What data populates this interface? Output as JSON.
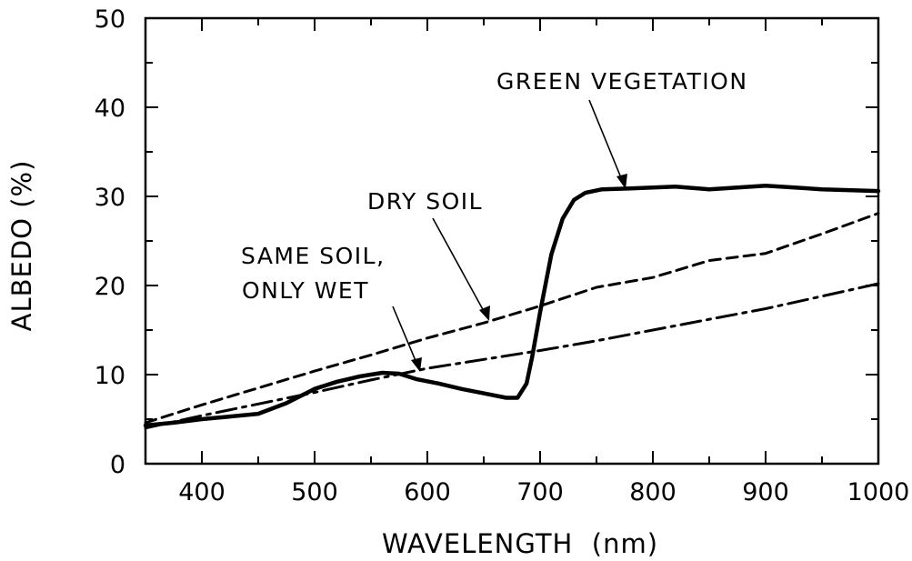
{
  "chart_data": {
    "type": "line",
    "xlabel": "WAVELENGTH  (nm)",
    "ylabel": "ALBEDO  (%)",
    "xlim": [
      350,
      1000
    ],
    "ylim": [
      0,
      50
    ],
    "xticks": [
      400,
      500,
      600,
      700,
      800,
      900,
      1000
    ],
    "yticks": [
      0,
      10,
      20,
      30,
      40,
      50
    ],
    "grid": false,
    "series": [
      {
        "name": "GREEN VEGETATION",
        "style": "solid-thick",
        "x": [
          350,
          375,
          400,
          425,
          450,
          475,
          500,
          520,
          540,
          560,
          575,
          590,
          610,
          630,
          650,
          670,
          680,
          688,
          693,
          700,
          710,
          720,
          730,
          740,
          755,
          780,
          820,
          850,
          900,
          950,
          1000
        ],
        "y": [
          4.3,
          4.6,
          5.0,
          5.3,
          5.6,
          6.8,
          8.4,
          9.2,
          9.8,
          10.2,
          10.1,
          9.5,
          9.0,
          8.4,
          7.9,
          7.4,
          7.4,
          9.0,
          12.0,
          17.0,
          23.5,
          27.5,
          29.6,
          30.4,
          30.8,
          30.9,
          31.1,
          30.8,
          31.2,
          30.8,
          30.6
        ]
      },
      {
        "name": "DRY SOIL",
        "style": "dashed",
        "x": [
          350,
          400,
          450,
          500,
          550,
          600,
          650,
          700,
          750,
          800,
          850,
          900,
          950,
          1000
        ],
        "y": [
          4.6,
          6.6,
          8.5,
          10.4,
          12.2,
          14.1,
          15.8,
          17.7,
          19.8,
          20.9,
          22.8,
          23.6,
          25.8,
          28.1
        ]
      },
      {
        "name": "SAME SOIL, ONLY WET",
        "style": "dash-dot",
        "x": [
          350,
          400,
          450,
          500,
          550,
          600,
          650,
          700,
          750,
          800,
          850,
          900,
          950,
          1000
        ],
        "y": [
          4.0,
          5.4,
          6.7,
          8.0,
          9.4,
          10.7,
          11.7,
          12.7,
          13.8,
          15.0,
          16.2,
          17.4,
          18.8,
          20.2
        ]
      }
    ],
    "annotations": {
      "green": "GREEN VEGETATION",
      "dry": "DRY SOIL",
      "wet_line1": "SAME SOIL,",
      "wet_line2": "ONLY WET"
    }
  }
}
